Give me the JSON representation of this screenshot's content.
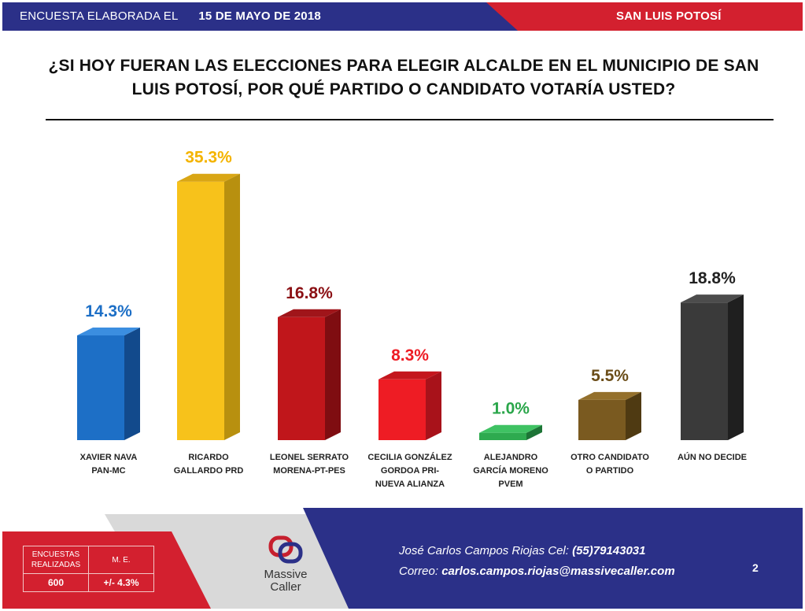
{
  "header": {
    "left_label": "ENCUESTA ELABORADA EL",
    "date": "15 DE MAYO DE 2018",
    "region": "SAN LUIS POTOSÍ"
  },
  "question_line1": "¿SI HOY FUERAN LAS ELECCIONES PARA ELEGIR ALCALDE EN EL MUNICIPIO DE SAN",
  "question_line2": "LUIS POTOSÍ, POR QUÉ PARTIDO O CANDIDATO VOTARÍA USTED?",
  "chart_data": {
    "type": "bar",
    "title": "¿SI HOY FUERAN LAS ELECCIONES PARA ELEGIR ALCALDE EN EL MUNICIPIO DE SAN LUIS POTOSÍ, POR QUÉ PARTIDO O CANDIDATO VOTARÍA USTED?",
    "xlabel": "",
    "ylabel": "",
    "ylim": [
      0,
      40
    ],
    "categories": [
      "XAVIER NAVA\nPAN-MC",
      "RICARDO\nGALLARDO PRD",
      "LEONEL SERRATO\nMORENA-PT-PES",
      "CECILIA GONZÁLEZ\nGORDOA PRI-\nNUEVA ALIANZA",
      "ALEJANDRO\nGARCÍA MORENO\nPVEM",
      "OTRO CANDIDATO\nO PARTIDO",
      "AÚN NO DECIDE"
    ],
    "values": [
      14.3,
      35.3,
      16.8,
      8.3,
      1.0,
      5.5,
      18.8
    ],
    "labels": [
      "14.3%",
      "35.3%",
      "16.8%",
      "8.3%",
      "1.0%",
      "5.5%",
      "18.8%"
    ],
    "colors": [
      "#1d6fc6",
      "#f7c21b",
      "#c0161b",
      "#ee1c24",
      "#2eaa4f",
      "#7a5a20",
      "#3a3a3a"
    ],
    "side_colors": [
      "#124a8c",
      "#b8900f",
      "#7f0d11",
      "#a8121a",
      "#1d7436",
      "#4f3a12",
      "#1f1f1f"
    ],
    "top_colors": [
      "#3b8ee0",
      "#d9a615",
      "#a0151a",
      "#c4161d",
      "#3fc263",
      "#94702c",
      "#4c4c4c"
    ],
    "label_colors": [
      "#1d6fc6",
      "#f4b400",
      "#8b1014",
      "#ee1c24",
      "#2aa64a",
      "#6b4d18",
      "#222222"
    ]
  },
  "stats": {
    "h1": "ENCUESTAS REALIZADAS",
    "h2": "M. E.",
    "v1": "600",
    "v2": "+/- 4.3%"
  },
  "logo": {
    "line1": "Massive",
    "line2": "Caller"
  },
  "contact": {
    "line1_prefix": "José Carlos Campos Riojas Cel: ",
    "phone": "(55)79143031",
    "line2_prefix": "Correo: ",
    "email": "carlos.campos.riojas@massivecaller.com"
  },
  "page_number": "2",
  "palette": {
    "blue": "#2b3088",
    "red": "#d3202f",
    "grey": "#d8d8d8"
  }
}
